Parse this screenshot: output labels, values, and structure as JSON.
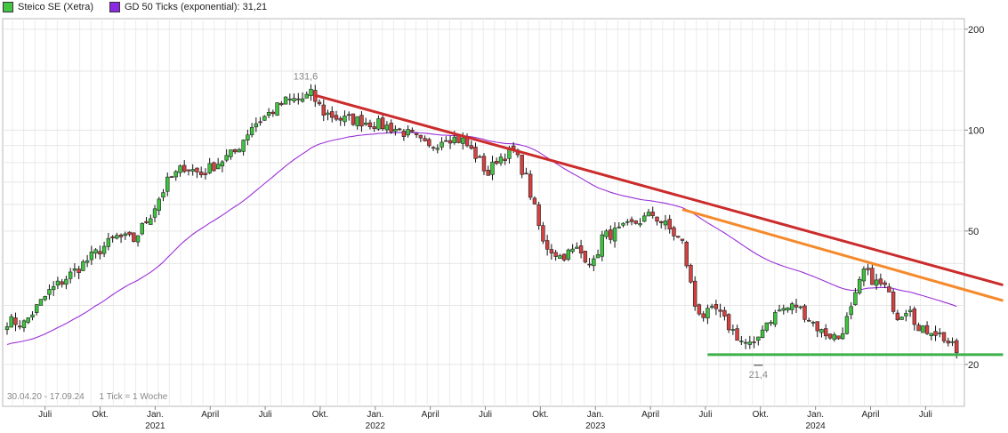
{
  "chart_data": {
    "type": "candlestick",
    "scale": "log",
    "grid": true,
    "legend_position": "top-left",
    "legend": [
      {
        "label": "Steico SE (Xetra)",
        "color": "#44c544"
      },
      {
        "label": "GD 50 Ticks (exponential): 31,21",
        "color": "#8a2be2"
      }
    ],
    "y_ticks": [
      "200",
      "100",
      "50",
      "20"
    ],
    "y_range": [
      15,
      215
    ],
    "x_months": [
      {
        "label": "Juli",
        "year": ""
      },
      {
        "label": "Okt.",
        "year": ""
      },
      {
        "label": "Jan.",
        "year": "2021"
      },
      {
        "label": "April",
        "year": ""
      },
      {
        "label": "Juli",
        "year": ""
      },
      {
        "label": "Okt.",
        "year": ""
      },
      {
        "label": "Jan.",
        "year": "2022"
      },
      {
        "label": "April",
        "year": ""
      },
      {
        "label": "Juli",
        "year": ""
      },
      {
        "label": "Okt.",
        "year": ""
      },
      {
        "label": "Jan.",
        "year": "2023"
      },
      {
        "label": "April",
        "year": ""
      },
      {
        "label": "Juli",
        "year": ""
      },
      {
        "label": "Okt.",
        "year": ""
      },
      {
        "label": "Jan.",
        "year": "2024"
      },
      {
        "label": "April",
        "year": ""
      },
      {
        "label": "Juli",
        "year": ""
      }
    ],
    "annotations": [
      {
        "text": "131,6",
        "week": 72,
        "value": 131.6
      },
      {
        "text": "21,4",
        "week": 178,
        "value": 21.4
      }
    ],
    "price_path": [
      [
        0,
        27
      ],
      [
        4,
        26.5
      ],
      [
        10,
        33
      ],
      [
        16,
        38
      ],
      [
        22,
        44
      ],
      [
        26,
        48
      ],
      [
        30,
        47
      ],
      [
        34,
        56
      ],
      [
        38,
        70
      ],
      [
        42,
        78
      ],
      [
        46,
        74
      ],
      [
        50,
        80
      ],
      [
        54,
        86
      ],
      [
        58,
        103
      ],
      [
        62,
        112
      ],
      [
        66,
        122
      ],
      [
        70,
        124
      ],
      [
        72,
        128
      ],
      [
        75,
        113
      ],
      [
        79,
        108
      ],
      [
        83,
        107
      ],
      [
        88,
        104
      ],
      [
        92,
        101
      ],
      [
        96,
        96
      ],
      [
        100,
        88
      ],
      [
        104,
        96
      ],
      [
        108,
        93
      ],
      [
        111,
        84
      ],
      [
        114,
        74
      ],
      [
        116,
        82
      ],
      [
        120,
        87
      ],
      [
        123,
        72
      ],
      [
        125,
        58
      ],
      [
        127,
        46
      ],
      [
        131,
        42
      ],
      [
        135,
        44
      ],
      [
        139,
        40
      ],
      [
        141,
        48
      ],
      [
        145,
        50
      ],
      [
        149,
        53
      ],
      [
        153,
        56
      ],
      [
        156,
        52
      ],
      [
        160,
        46
      ],
      [
        163,
        30
      ],
      [
        165,
        28
      ],
      [
        168,
        29
      ],
      [
        171,
        26
      ],
      [
        174,
        23.5
      ],
      [
        177,
        22.5
      ],
      [
        179,
        26
      ],
      [
        183,
        29
      ],
      [
        187,
        30
      ],
      [
        190,
        27.5
      ],
      [
        193,
        25
      ],
      [
        197,
        24
      ],
      [
        200,
        29
      ],
      [
        203,
        38
      ],
      [
        206,
        35
      ],
      [
        208,
        34
      ],
      [
        211,
        28
      ],
      [
        214,
        30
      ],
      [
        216,
        25
      ],
      [
        219,
        25.5
      ],
      [
        222,
        24
      ],
      [
        225,
        21.8
      ]
    ],
    "trend_lines": [
      {
        "color": "#cc2b2b",
        "from": [
          73,
          127
        ],
        "to": [
          236,
          34.5
        ]
      },
      {
        "color": "#f58a2c",
        "from": [
          160,
          58
        ],
        "to": [
          236,
          31
        ]
      },
      {
        "color": "#3db04a",
        "from": [
          166,
          21.4
        ],
        "to": [
          236,
          21.4
        ]
      }
    ],
    "ema_period": 50,
    "ema_last": 31.21
  },
  "footnote": {
    "range": "30.04.20 - 17.09.24",
    "tick_info": "1 Tick = 1 Woche"
  }
}
